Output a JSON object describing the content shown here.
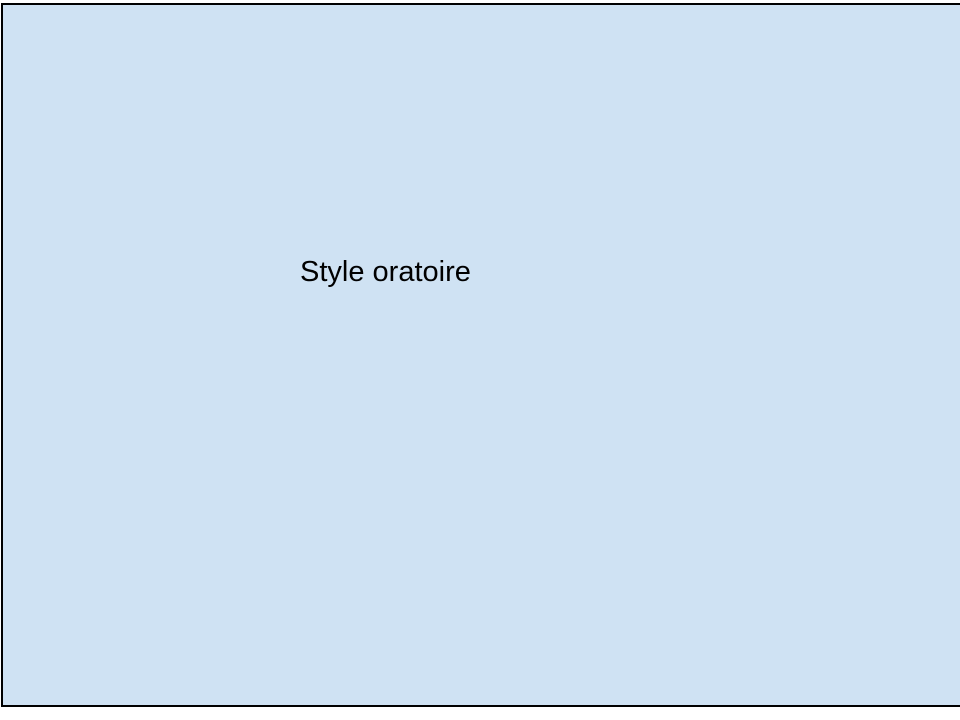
{
  "diagram": {
    "box": {
      "label": "Style oratoire",
      "fill_color": "#cfe2f3",
      "border_color": "#000000"
    }
  }
}
